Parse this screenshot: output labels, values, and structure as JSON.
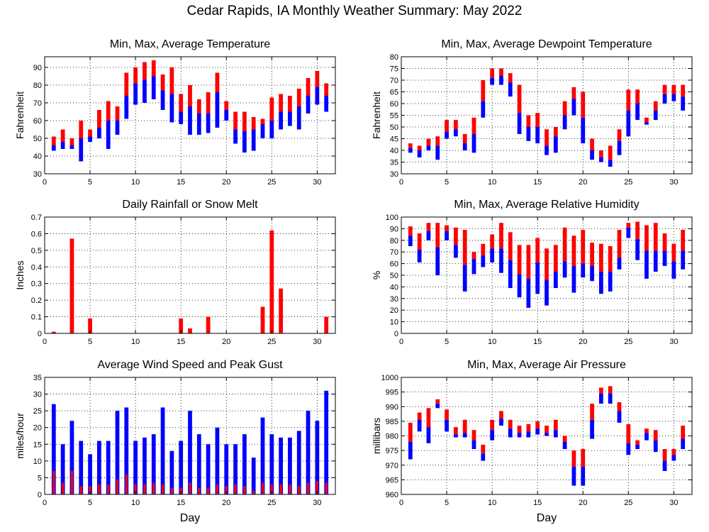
{
  "figure": {
    "title": "Cedar Rapids, IA Monthly Weather Summary: May 2022"
  },
  "chart_data": [
    {
      "type": "bar",
      "title": "Min, Max, Average Temperature",
      "xlabel": "",
      "ylabel": "Fahrenheit",
      "xlim": [
        0,
        32
      ],
      "ylim": [
        30,
        96
      ],
      "xticks": [
        0,
        5,
        10,
        15,
        20,
        25,
        30
      ],
      "yticks": [
        30,
        40,
        50,
        60,
        70,
        80,
        90
      ],
      "grid": true,
      "x": [
        1,
        2,
        3,
        4,
        5,
        6,
        7,
        8,
        9,
        10,
        11,
        12,
        13,
        14,
        15,
        16,
        17,
        18,
        19,
        20,
        21,
        22,
        23,
        24,
        25,
        26,
        27,
        28,
        29,
        30,
        31
      ],
      "min": [
        43,
        44,
        44,
        37,
        48,
        50,
        44,
        52,
        61,
        69,
        70,
        72,
        66,
        59,
        58,
        52,
        52,
        53,
        56,
        60,
        47,
        42,
        43,
        50,
        50,
        55,
        57,
        55,
        64,
        69,
        65
      ],
      "avg": [
        46,
        48,
        46,
        50,
        51,
        56,
        60,
        60,
        74,
        81,
        83,
        85,
        77,
        75,
        65,
        68,
        64,
        64,
        76,
        66,
        55,
        54,
        55,
        58,
        60,
        65,
        65,
        68,
        74,
        79,
        74
      ],
      "max": [
        51,
        55,
        50,
        60,
        55,
        66,
        71,
        68,
        87,
        90,
        93,
        94,
        86,
        90,
        75,
        80,
        72,
        76,
        87,
        71,
        65,
        65,
        62,
        61,
        73,
        75,
        74,
        78,
        84,
        88,
        81
      ],
      "colors": {
        "upper": "#ff0000",
        "lower": "#0000ff"
      }
    },
    {
      "type": "bar",
      "title": "Min, Max, Average Dewpoint Temperature",
      "xlabel": "",
      "ylabel": "Fahrenheit",
      "xlim": [
        0,
        32
      ],
      "ylim": [
        30,
        80
      ],
      "xticks": [
        0,
        5,
        10,
        15,
        20,
        25,
        30
      ],
      "yticks": [
        30,
        35,
        40,
        45,
        50,
        55,
        60,
        65,
        70,
        75,
        80
      ],
      "grid": true,
      "x": [
        1,
        2,
        3,
        4,
        5,
        6,
        7,
        8,
        9,
        10,
        11,
        12,
        13,
        14,
        15,
        16,
        17,
        18,
        19,
        20,
        21,
        22,
        23,
        24,
        25,
        26,
        27,
        28,
        29,
        30,
        31
      ],
      "min": [
        39,
        37,
        40,
        36,
        45,
        46,
        40,
        39,
        54,
        68,
        68,
        63,
        47,
        44,
        43,
        38,
        39,
        49,
        55,
        43,
        36,
        35,
        33,
        38,
        46,
        53,
        51,
        53,
        60,
        61,
        57
      ],
      "avg": [
        41,
        40,
        42,
        42,
        48,
        49,
        43,
        47,
        61,
        71,
        72,
        69,
        56,
        50,
        50,
        42,
        46,
        55,
        62,
        54,
        40,
        37,
        36,
        44,
        57,
        60,
        52,
        57,
        64,
        64,
        63
      ],
      "max": [
        43,
        42,
        45,
        46,
        53,
        53,
        47,
        54,
        70,
        75,
        75,
        73,
        68,
        55,
        56,
        49,
        50,
        61,
        67,
        65,
        45,
        40,
        42,
        49,
        66,
        66,
        54,
        61,
        68,
        68,
        68
      ],
      "colors": {
        "upper": "#ff0000",
        "lower": "#0000ff"
      }
    },
    {
      "type": "bar",
      "title": "Daily Rainfall or Snow Melt",
      "xlabel": "",
      "ylabel": "Inches",
      "xlim": [
        0,
        32
      ],
      "ylim": [
        0,
        0.7
      ],
      "xticks": [
        0,
        5,
        10,
        15,
        20,
        25,
        30
      ],
      "yticks": [
        0,
        0.1,
        0.2,
        0.3,
        0.4,
        0.5,
        0.6,
        0.7
      ],
      "grid": true,
      "x": [
        1,
        2,
        3,
        4,
        5,
        6,
        7,
        8,
        9,
        10,
        11,
        12,
        13,
        14,
        15,
        16,
        17,
        18,
        19,
        20,
        21,
        22,
        23,
        24,
        25,
        26,
        27,
        28,
        29,
        30,
        31
      ],
      "values": [
        0.01,
        0,
        0.57,
        0,
        0.09,
        0,
        0,
        0,
        0,
        0,
        0,
        0,
        0,
        0,
        0.09,
        0.03,
        0,
        0.1,
        0,
        0,
        0,
        0,
        0,
        0.16,
        0.62,
        0.27,
        0,
        0,
        0,
        0,
        0.1
      ],
      "colors": {
        "bar": "#ff0000"
      }
    },
    {
      "type": "bar",
      "title": "Min, Max, Average Relative Humidity",
      "xlabel": "",
      "ylabel": "%",
      "xlim": [
        0,
        32
      ],
      "ylim": [
        0,
        100
      ],
      "xticks": [
        0,
        5,
        10,
        15,
        20,
        25,
        30
      ],
      "yticks": [
        0,
        10,
        20,
        30,
        40,
        50,
        60,
        70,
        80,
        90,
        100
      ],
      "grid": true,
      "x": [
        1,
        2,
        3,
        4,
        5,
        6,
        7,
        8,
        9,
        10,
        11,
        12,
        13,
        14,
        15,
        16,
        17,
        18,
        19,
        20,
        21,
        22,
        23,
        24,
        25,
        26,
        27,
        28,
        29,
        30,
        31
      ],
      "min": [
        75,
        61,
        80,
        50,
        80,
        65,
        36,
        51,
        57,
        61,
        52,
        39,
        31,
        22,
        34,
        24,
        39,
        48,
        35,
        48,
        45,
        34,
        36,
        55,
        82,
        63,
        47,
        53,
        58,
        47,
        55
      ],
      "avg": [
        84,
        72,
        88,
        74,
        88,
        76,
        59,
        64,
        67,
        73,
        73,
        63,
        51,
        47,
        61,
        46,
        53,
        62,
        58,
        60,
        58,
        53,
        53,
        65,
        91,
        81,
        71,
        71,
        71,
        62,
        71
      ],
      "max": [
        92,
        86,
        95,
        95,
        93,
        91,
        89,
        70,
        77,
        85,
        95,
        87,
        76,
        76,
        82,
        73,
        76,
        91,
        84,
        89,
        78,
        77,
        75,
        89,
        95,
        96,
        93,
        95,
        86,
        77,
        89
      ],
      "colors": {
        "upper": "#ff0000",
        "lower": "#0000ff"
      }
    },
    {
      "type": "bar",
      "title": "Average Wind Speed and Peak Gust",
      "xlabel": "Day",
      "ylabel": "miles/hour",
      "xlim": [
        0,
        32
      ],
      "ylim": [
        0,
        35
      ],
      "xticks": [
        0,
        5,
        10,
        15,
        20,
        25,
        30
      ],
      "yticks": [
        0,
        5,
        10,
        15,
        20,
        25,
        30,
        35
      ],
      "grid": true,
      "x": [
        1,
        2,
        3,
        4,
        5,
        6,
        7,
        8,
        9,
        10,
        11,
        12,
        13,
        14,
        15,
        16,
        17,
        18,
        19,
        20,
        21,
        22,
        23,
        24,
        25,
        26,
        27,
        28,
        29,
        30,
        31
      ],
      "series": [
        {
          "name": "Peak Gust",
          "color": "#0000ff",
          "values": [
            27,
            15,
            22,
            16,
            12,
            16,
            16,
            25,
            26,
            16,
            17,
            18,
            26,
            13,
            16,
            25,
            18,
            15,
            20,
            15,
            15,
            18,
            11,
            23,
            18,
            17,
            17,
            19,
            25,
            22,
            31
          ]
        },
        {
          "name": "Average Wind Speed",
          "color": "#ff0000",
          "values": [
            7,
            3.5,
            7,
            2.5,
            2.5,
            3,
            3,
            4.5,
            6,
            3,
            3,
            3.5,
            3,
            2,
            2,
            3.5,
            2,
            2,
            3,
            2.5,
            3,
            2.5,
            1,
            3.5,
            3,
            3,
            3,
            2.5,
            3.5,
            4,
            3.5
          ]
        }
      ]
    },
    {
      "type": "bar",
      "title": "Min, Max, Average Air Pressure",
      "xlabel": "Day",
      "ylabel": "millibars",
      "xlim": [
        0,
        32
      ],
      "ylim": [
        960,
        1000
      ],
      "xticks": [
        0,
        5,
        10,
        15,
        20,
        25,
        30
      ],
      "yticks": [
        960,
        965,
        970,
        975,
        980,
        985,
        990,
        995,
        1000
      ],
      "grid": true,
      "x": [
        1,
        2,
        3,
        4,
        5,
        6,
        7,
        8,
        9,
        10,
        11,
        12,
        13,
        14,
        15,
        16,
        17,
        18,
        19,
        20,
        21,
        22,
        23,
        24,
        25,
        26,
        27,
        28,
        29,
        30,
        31
      ],
      "min": [
        972,
        981.5,
        977.5,
        989.5,
        981.5,
        979.5,
        979.5,
        975.5,
        971.5,
        978.5,
        983.5,
        979.5,
        979.5,
        979.5,
        980.5,
        980,
        979.5,
        975.5,
        963,
        963,
        979,
        991,
        991,
        984.5,
        973.5,
        975.5,
        978.5,
        974.5,
        968,
        971.5,
        975.5
      ],
      "avg": [
        978,
        985.5,
        983,
        991,
        985.5,
        980.5,
        981,
        978.5,
        974,
        982,
        986,
        982.5,
        981,
        981.5,
        982.5,
        981,
        982,
        978,
        969.5,
        969.5,
        985.5,
        994.5,
        994.5,
        988.5,
        977.5,
        977,
        981,
        978.5,
        971.5,
        973.5,
        979
      ],
      "max": [
        984.5,
        988,
        989.5,
        992.5,
        989,
        983,
        985.5,
        982,
        977,
        985.5,
        988.5,
        985.5,
        983.5,
        984,
        985,
        983.5,
        985.5,
        980,
        975,
        975.5,
        991,
        996.5,
        997,
        991.5,
        984,
        978.5,
        982.5,
        982,
        975.5,
        975.5,
        983.5
      ],
      "colors": {
        "upper": "#ff0000",
        "lower": "#0000ff"
      }
    }
  ]
}
